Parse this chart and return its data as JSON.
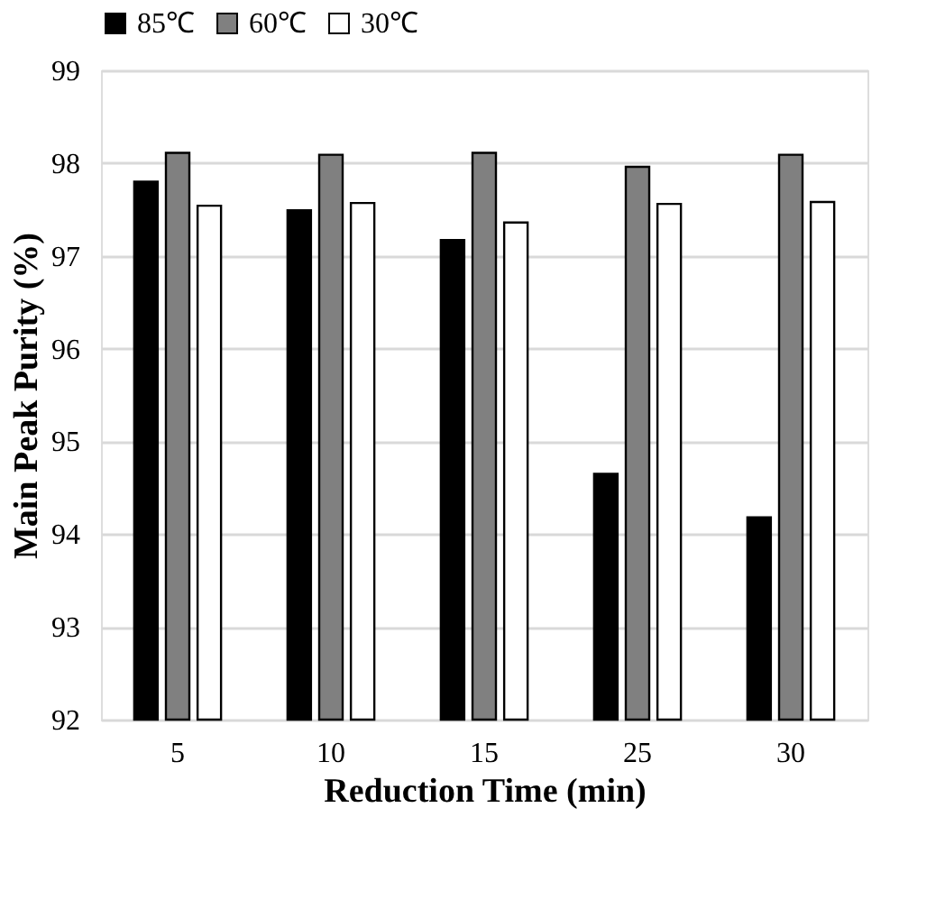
{
  "chart_data": {
    "type": "bar",
    "xlabel": "Reduction Time (min)",
    "ylabel": "Main Peak Purity (%)",
    "categories": [
      "5",
      "10",
      "15",
      "25",
      "30"
    ],
    "series": [
      {
        "name": "85℃",
        "color": "#000000",
        "values": [
          97.8,
          97.49,
          97.17,
          94.65,
          94.18
        ]
      },
      {
        "name": "60℃",
        "color": "#808080",
        "values": [
          98.11,
          98.09,
          98.11,
          97.96,
          98.09
        ]
      },
      {
        "name": "30℃",
        "color": "#ffffff",
        "values": [
          97.54,
          97.57,
          97.36,
          97.56,
          97.58
        ]
      }
    ],
    "ylim": [
      92,
      99
    ],
    "yticks": [
      92,
      93,
      94,
      95,
      96,
      97,
      98,
      99
    ],
    "grid": "y",
    "legend": "top"
  }
}
